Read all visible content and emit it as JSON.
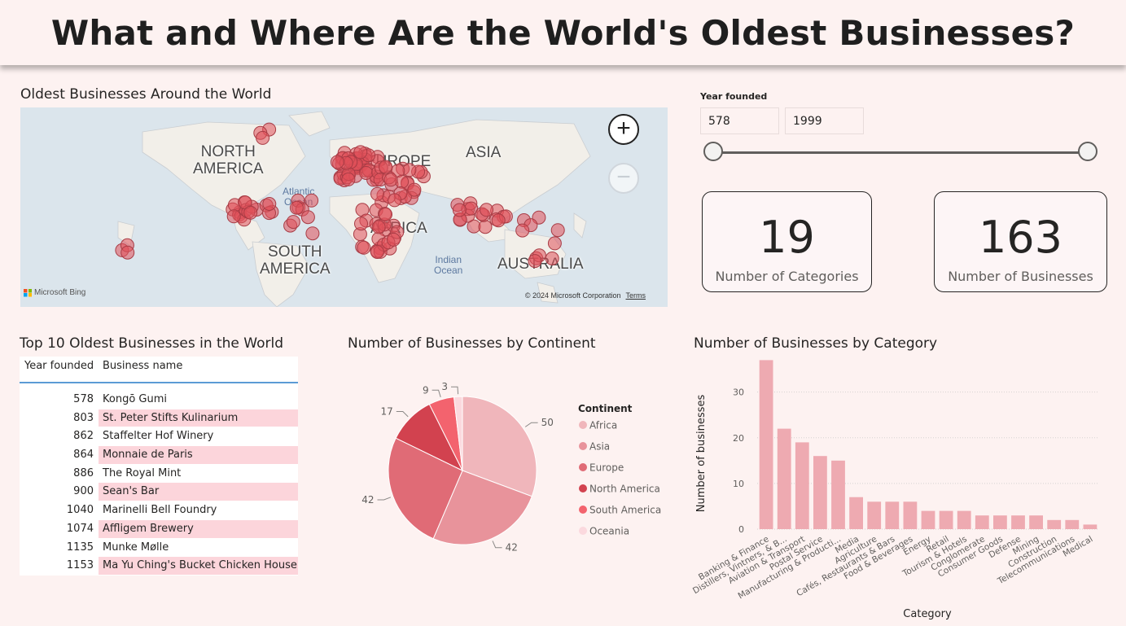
{
  "header": {
    "title": "What and Where Are the World's Oldest Businesses?"
  },
  "map": {
    "title": "Oldest Businesses Around the World",
    "labels": {
      "north_america": [
        "NORTH",
        "AMERICA"
      ],
      "south_america": [
        "SOUTH",
        "AMERICA"
      ],
      "europe": "EUROPE",
      "asia": "ASIA",
      "africa": "AFRICA",
      "australia": "AUSTRALIA",
      "atlantic": [
        "Atlantic",
        "Ocean"
      ],
      "indian": [
        "Indian",
        "Ocean"
      ]
    },
    "zoom_in": "+",
    "zoom_out": "−",
    "attribution": "Microsoft Bing",
    "copyright": "© 2024 Microsoft Corporation",
    "terms": "Terms",
    "marker_color": "#e0505a"
  },
  "slicer": {
    "label": "Year founded",
    "min": "578",
    "max": "1999",
    "min_value": 578,
    "max_value": 1999
  },
  "cards": [
    {
      "value": "19",
      "caption": "Number of Categories"
    },
    {
      "value": "163",
      "caption": "Number of Businesses"
    }
  ],
  "table": {
    "title": "Top 10 Oldest Businesses in the World",
    "columns": [
      "Year founded",
      "Business name"
    ],
    "rows": [
      {
        "year": "578",
        "name": "Kongō Gumi"
      },
      {
        "year": "803",
        "name": "St. Peter Stifts Kulinarium"
      },
      {
        "year": "862",
        "name": "Staffelter Hof Winery"
      },
      {
        "year": "864",
        "name": "Monnaie de Paris"
      },
      {
        "year": "886",
        "name": "The Royal Mint"
      },
      {
        "year": "900",
        "name": "Sean's Bar"
      },
      {
        "year": "1040",
        "name": "Marinelli Bell Foundry"
      },
      {
        "year": "1074",
        "name": "Affligem Brewery"
      },
      {
        "year": "1135",
        "name": "Munke Mølle"
      },
      {
        "year": "1153",
        "name": "Ma Yu Ching's Bucket Chicken House"
      }
    ]
  },
  "chart_data": [
    {
      "type": "pie",
      "title": "Number of Businesses by Continent",
      "legend_title": "Continent",
      "legend_position": "right",
      "categories": [
        "Africa",
        "Asia",
        "Europe",
        "North America",
        "South America",
        "Oceania"
      ],
      "values": [
        50,
        42,
        42,
        17,
        9,
        3
      ],
      "colors": [
        "#f0b6bb",
        "#e8939b",
        "#e06b76",
        "#d2424f",
        "#f3636e",
        "#fbd9de"
      ]
    },
    {
      "type": "bar",
      "title": "Number of Businesses by Category",
      "xlabel": "Category",
      "ylabel": "Number of businesses",
      "ylim": [
        0,
        36
      ],
      "yticks": [
        0,
        10,
        20,
        30
      ],
      "grid": true,
      "color": "#eeaab1",
      "categories": [
        "Banking & Finance",
        "Distillers, Vintners, & B...",
        "Aviation & Transport",
        "Postal Service",
        "Manufacturing & Producti...",
        "Media",
        "Agriculture",
        "Cafés, Restaurants & Bars",
        "Food & Beverages",
        "Energy",
        "Retail",
        "Tourism & Hotels",
        "Conglomerate",
        "Consumer Goods",
        "Defense",
        "Mining",
        "Construction",
        "Telecommunications",
        "Medical"
      ],
      "values": [
        37,
        22,
        19,
        16,
        15,
        7,
        6,
        6,
        6,
        4,
        4,
        4,
        3,
        3,
        3,
        3,
        2,
        2,
        1
      ]
    }
  ]
}
